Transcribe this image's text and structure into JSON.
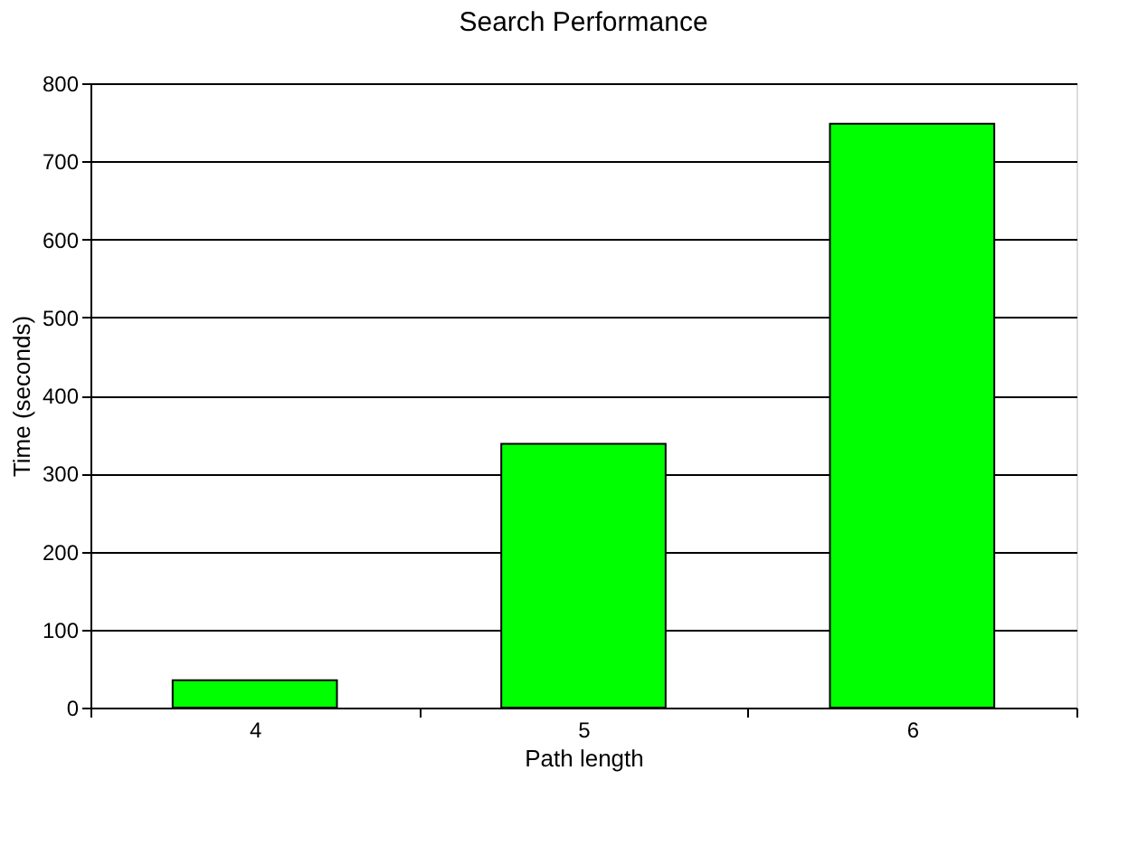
{
  "chart_data": {
    "type": "bar",
    "title": "Search Performance",
    "xlabel": "Path length",
    "ylabel": "Time (seconds)",
    "categories": [
      "4",
      "5",
      "6"
    ],
    "values": [
      35,
      338,
      748
    ],
    "color": "#00ff00",
    "ylim": [
      0,
      800
    ],
    "yticks": [
      0,
      100,
      200,
      300,
      400,
      500,
      600,
      700,
      800
    ],
    "grid": "y"
  }
}
